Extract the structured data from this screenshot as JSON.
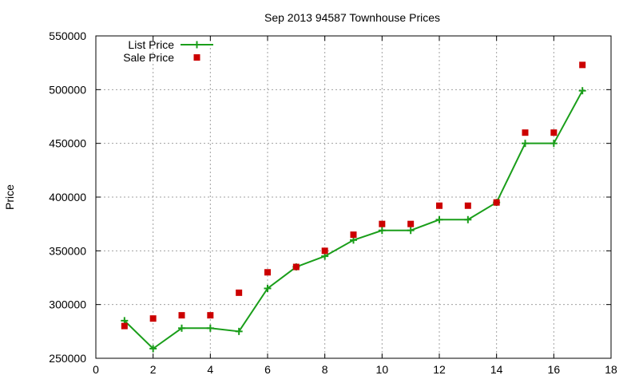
{
  "chart_data": {
    "type": "scatter",
    "title": "Sep 2013 94587 Townhouse Prices",
    "xlabel": "",
    "ylabel": "Price",
    "xlim": [
      0,
      18
    ],
    "ylim": [
      250000,
      550000
    ],
    "x_ticks": [
      0,
      2,
      4,
      6,
      8,
      10,
      12,
      14,
      16,
      18
    ],
    "y_ticks": [
      250000,
      300000,
      350000,
      400000,
      450000,
      500000,
      550000
    ],
    "grid": true,
    "legend_position": "top-left",
    "series": [
      {
        "name": "List Price",
        "style": "linespoints",
        "marker": "plus",
        "color": "#1a9e1a",
        "x": [
          1,
          2,
          3,
          4,
          5,
          6,
          7,
          8,
          9,
          10,
          11,
          12,
          13,
          14,
          15,
          16,
          17
        ],
        "y": [
          285000,
          259000,
          278000,
          278000,
          275000,
          315000,
          335000,
          345000,
          360000,
          369000,
          369000,
          379000,
          379000,
          395000,
          450000,
          450000,
          499000
        ]
      },
      {
        "name": "Sale Price",
        "style": "points",
        "marker": "square",
        "color": "#cc0000",
        "x": [
          1,
          2,
          3,
          4,
          5,
          6,
          7,
          8,
          9,
          10,
          11,
          12,
          13,
          14,
          15,
          16,
          17
        ],
        "y": [
          280000,
          287000,
          290000,
          290000,
          311000,
          330000,
          335000,
          350000,
          365000,
          375000,
          375000,
          392000,
          392000,
          395000,
          460000,
          460000,
          523000
        ]
      }
    ]
  }
}
